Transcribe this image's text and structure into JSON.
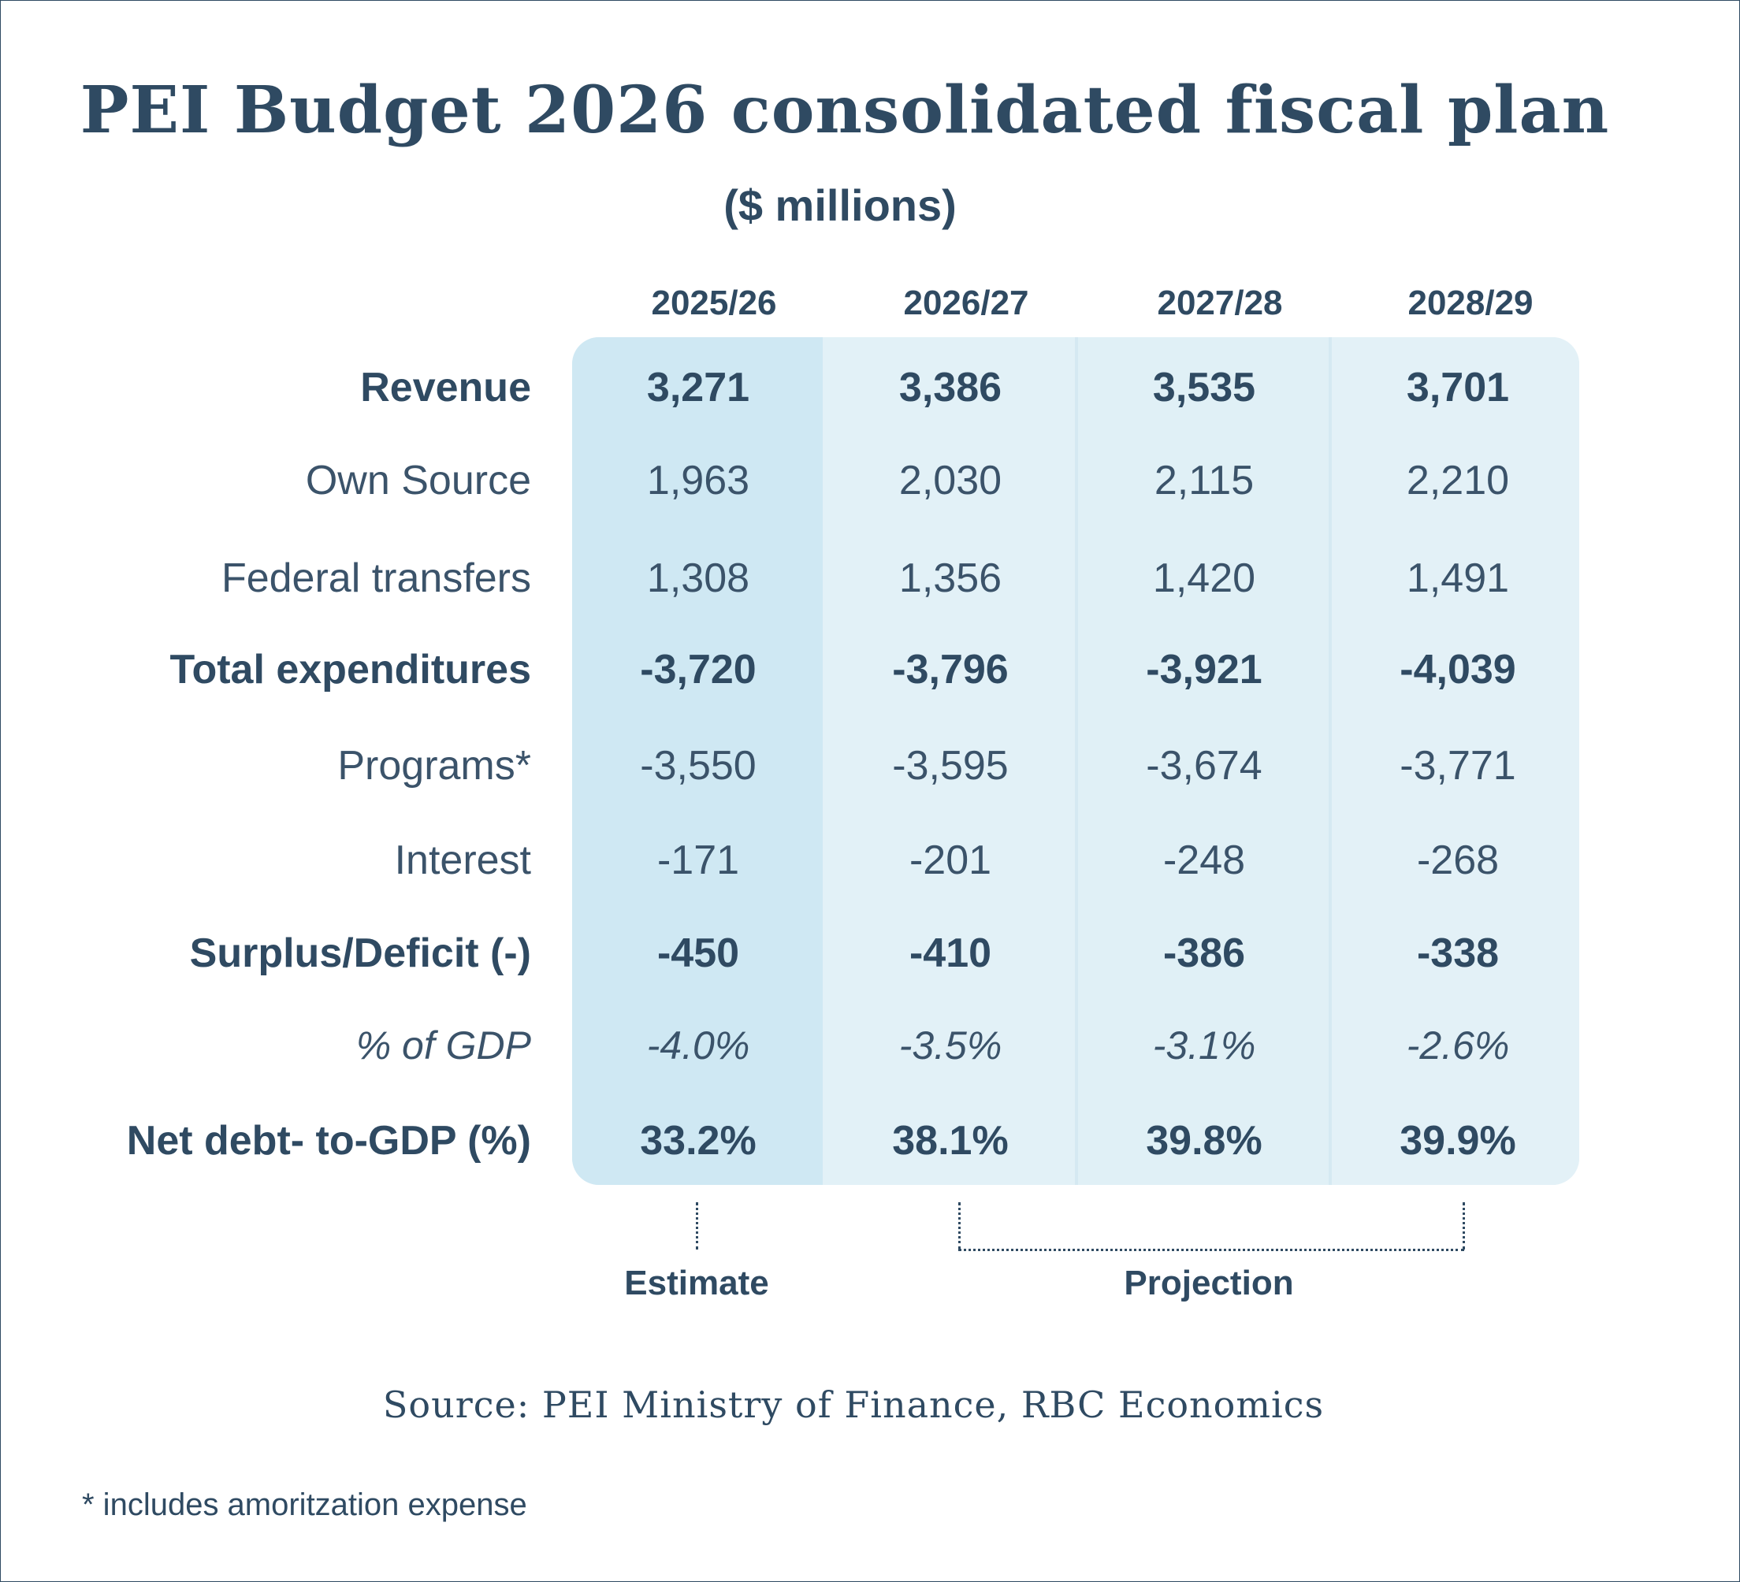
{
  "chart_data": {
    "type": "table",
    "title": "PEI Budget 2026 consolidated fiscal plan",
    "subtitle": "($ millions)",
    "columns": [
      "2025/26",
      "2026/27",
      "2027/28",
      "2028/29"
    ],
    "rows": [
      {
        "label": "Revenue",
        "style": "bold",
        "values": [
          "3,271",
          "3,386",
          "3,535",
          "3,701"
        ]
      },
      {
        "label": "Own Source",
        "style": "normal",
        "values": [
          "1,963",
          "2,030",
          "2,115",
          "2,210"
        ]
      },
      {
        "label": "Federal transfers",
        "style": "normal",
        "values": [
          "1,308",
          "1,356",
          "1,420",
          "1,491"
        ]
      },
      {
        "label": "Total expenditures",
        "style": "bold",
        "values": [
          "-3,720",
          "-3,796",
          "-3,921",
          "-4,039"
        ]
      },
      {
        "label": "Programs*",
        "style": "normal",
        "values": [
          "-3,550",
          "-3,595",
          "-3,674",
          "-3,771"
        ]
      },
      {
        "label": "Interest",
        "style": "normal",
        "values": [
          "-171",
          "-201",
          "-248",
          "-268"
        ]
      },
      {
        "label": "Surplus/Deficit (-)",
        "style": "bold",
        "values": [
          "-450",
          "-410",
          "-386",
          "-338"
        ]
      },
      {
        "label": "% of GDP",
        "style": "italic",
        "values": [
          "-4.0%",
          "-3.5%",
          "-3.1%",
          "-2.6%"
        ]
      },
      {
        "label": "Net debt- to-GDP (%)",
        "style": "bold",
        "values": [
          "33.2%",
          "38.1%",
          "39.8%",
          "39.9%"
        ]
      }
    ],
    "annotations": {
      "estimate": "Estimate",
      "projection": "Projection"
    },
    "source": "Source: PEI Ministry of Finance, RBC Economics",
    "footnote": "* includes amoritzation expense"
  },
  "colors": {
    "text": "#2f4a62",
    "panel": "#e3f1f7",
    "estimate_column": "#cfe8f3",
    "border": "#2f4a62"
  }
}
